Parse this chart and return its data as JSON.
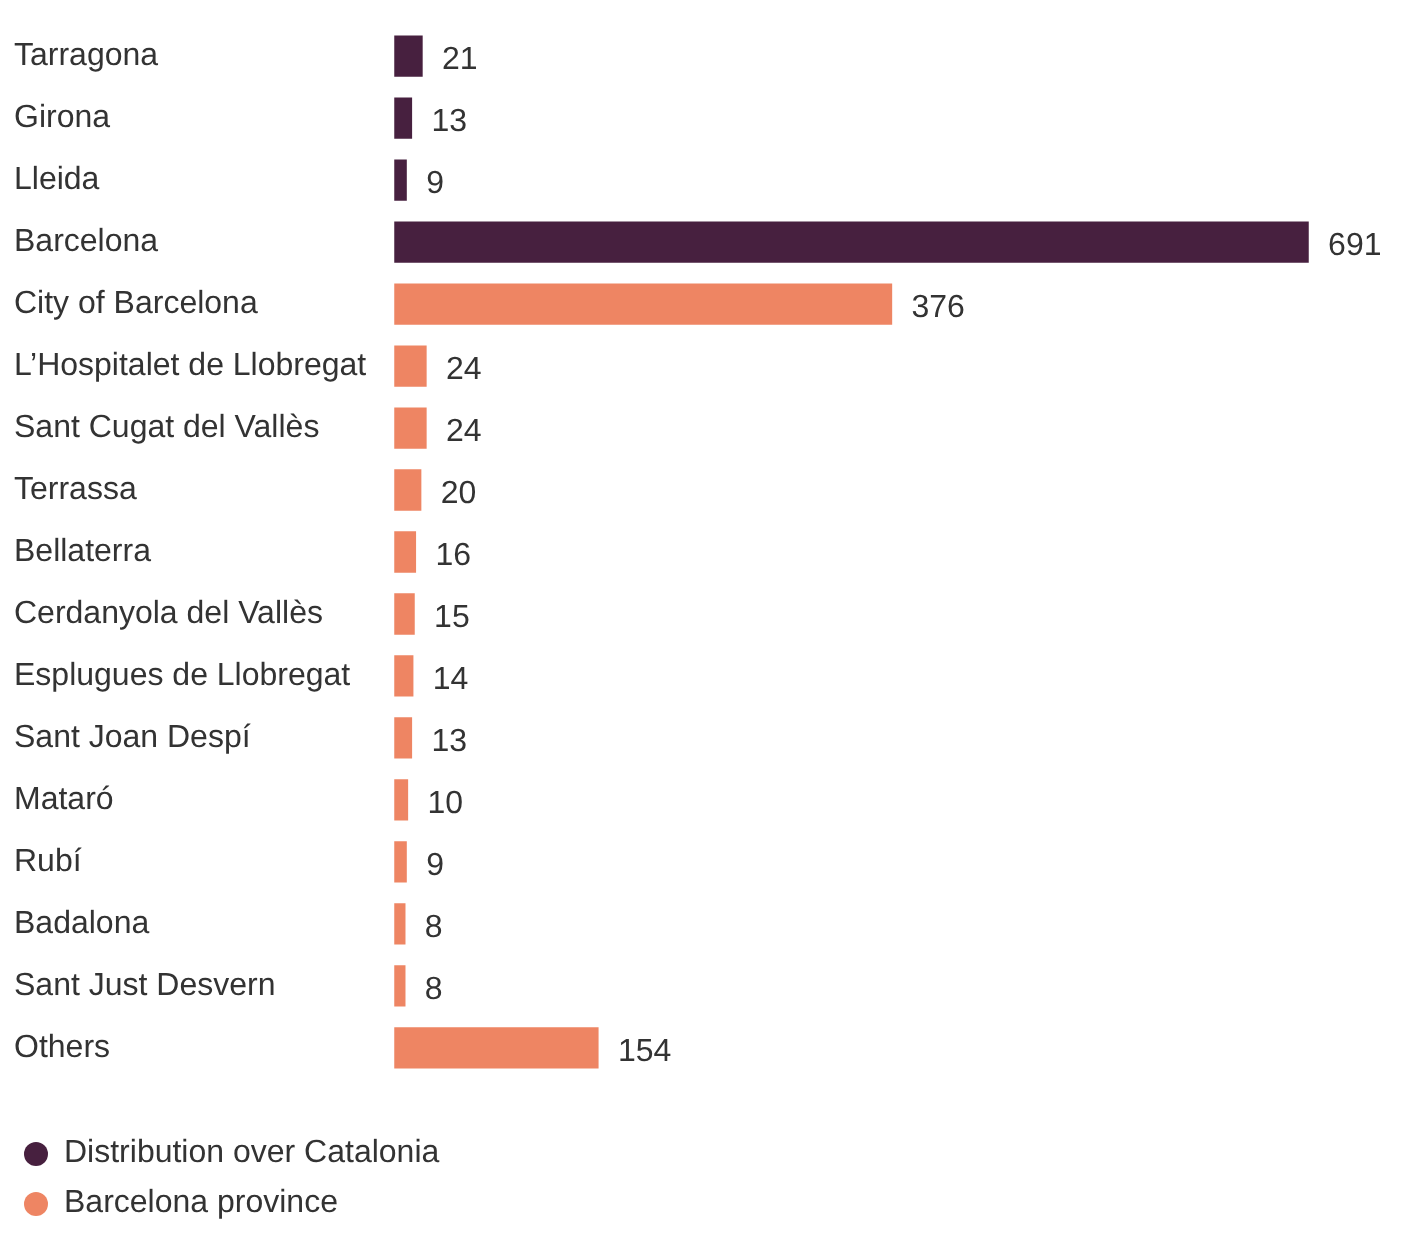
{
  "chart_data": {
    "type": "bar",
    "orientation": "horizontal",
    "categories": [
      "Tarragona",
      "Girona",
      "Lleida",
      "Barcelona",
      "City of Barcelona",
      "L’Hospitalet de Llobregat",
      "Sant Cugat del Vallès",
      "Terrassa",
      "Bellaterra",
      "Cerdanyola del Vallès",
      "Esplugues de Llobregat",
      "Sant Joan Despí",
      "Mataró",
      "Rubí",
      "Badalona",
      "Sant Just Desvern",
      "Others"
    ],
    "series": [
      {
        "name": "Distribution over Catalonia",
        "color": "#47203f",
        "values": [
          21,
          13,
          9,
          691,
          null,
          null,
          null,
          null,
          null,
          null,
          null,
          null,
          null,
          null,
          null,
          null,
          null
        ]
      },
      {
        "name": "Barcelona province",
        "color": "#ee8563",
        "values": [
          null,
          null,
          null,
          null,
          376,
          24,
          24,
          20,
          16,
          15,
          14,
          13,
          10,
          9,
          8,
          8,
          154
        ]
      }
    ],
    "data_labels": true,
    "legend": "bottom left"
  }
}
